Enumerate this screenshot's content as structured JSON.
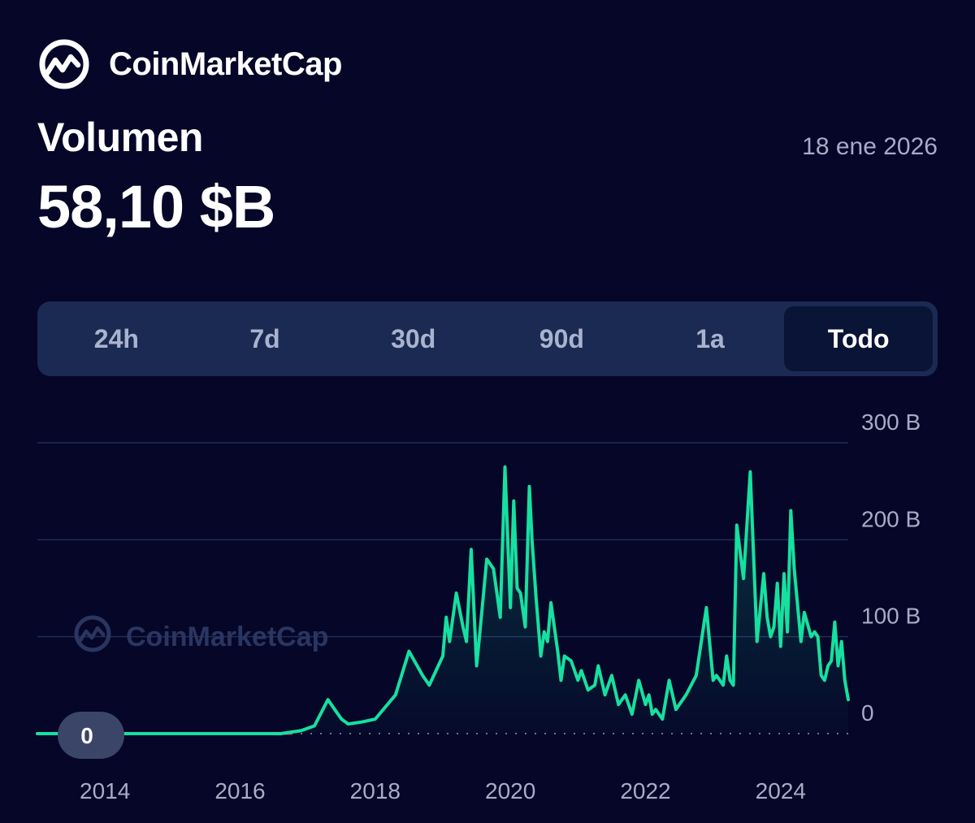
{
  "brand": {
    "name": "CoinMarketCap"
  },
  "header": {
    "metric_label": "Volumen",
    "metric_value": "58,10 $B",
    "date": "18 ene 2026"
  },
  "tabs": [
    {
      "label": "24h",
      "active": false
    },
    {
      "label": "7d",
      "active": false
    },
    {
      "label": "30d",
      "active": false
    },
    {
      "label": "90d",
      "active": false
    },
    {
      "label": "1a",
      "active": false
    },
    {
      "label": "Todo",
      "active": true
    }
  ],
  "colors": {
    "background": "#050628",
    "line": "#16E0A0",
    "grid": "#1F2E55",
    "zero_line": "#C0394A",
    "axis_text": "#A7ACC6"
  },
  "chart_data": {
    "type": "line",
    "ylabel_ticks": [
      "0",
      "100 B",
      "200 B",
      "300 B"
    ],
    "y_ticks": [
      0,
      100,
      200,
      300
    ],
    "x_tick_labels": [
      "2014",
      "2016",
      "2018",
      "2020",
      "2022",
      "2024"
    ],
    "x_ticks": [
      2014,
      2016,
      2018,
      2020,
      2022,
      2024
    ],
    "xlim": [
      2013.0,
      2025.0
    ],
    "ylim": [
      0,
      300
    ],
    "grid": true,
    "watermark": "CoinMarketCap",
    "current_badge": "0",
    "series": [
      {
        "x": [
          2013.0,
          2014.0,
          2015.0,
          2016.0,
          2016.6,
          2016.9,
          2017.1,
          2017.3,
          2017.4,
          2017.5,
          2017.6,
          2017.8,
          2018.0,
          2018.3,
          2018.5,
          2018.7,
          2018.8,
          2018.9,
          2019.0,
          2019.05,
          2019.1,
          2019.2,
          2019.3,
          2019.35,
          2019.42,
          2019.5,
          2019.55,
          2019.65,
          2019.75,
          2019.85,
          2019.92,
          2020.0,
          2020.05,
          2020.1,
          2020.15,
          2020.22,
          2020.28,
          2020.32,
          2020.38,
          2020.45,
          2020.5,
          2020.55,
          2020.6,
          2020.7,
          2020.75,
          2020.8,
          2020.9,
          2021.0,
          2021.05,
          2021.15,
          2021.25,
          2021.3,
          2021.4,
          2021.5,
          2021.6,
          2021.7,
          2021.8,
          2021.9,
          2022.0,
          2022.05,
          2022.1,
          2022.15,
          2022.25,
          2022.35,
          2022.45,
          2022.6,
          2022.75,
          2022.9,
          2023.0,
          2023.05,
          2023.15,
          2023.2,
          2023.25,
          2023.3,
          2023.35,
          2023.45,
          2023.55,
          2023.65,
          2023.75,
          2023.8,
          2023.85,
          2023.9,
          2023.95,
          2024.0,
          2024.05,
          2024.1,
          2024.15,
          2024.2,
          2024.3,
          2024.35,
          2024.45,
          2024.5,
          2024.55,
          2024.6,
          2024.65,
          2024.7,
          2024.75,
          2024.8,
          2024.85,
          2024.9,
          2024.95,
          2025.0
        ],
        "values": [
          0,
          0,
          0,
          0,
          0,
          3,
          8,
          35,
          25,
          15,
          10,
          12,
          15,
          40,
          85,
          60,
          50,
          65,
          80,
          120,
          95,
          145,
          110,
          95,
          190,
          70,
          105,
          180,
          170,
          120,
          275,
          130,
          240,
          150,
          145,
          110,
          255,
          200,
          140,
          80,
          105,
          95,
          135,
          85,
          55,
          80,
          75,
          55,
          65,
          45,
          50,
          70,
          40,
          60,
          30,
          40,
          20,
          55,
          30,
          40,
          20,
          25,
          15,
          55,
          25,
          40,
          60,
          130,
          55,
          60,
          50,
          80,
          55,
          50,
          215,
          160,
          270,
          95,
          165,
          120,
          100,
          110,
          155,
          90,
          165,
          105,
          230,
          170,
          95,
          125,
          100,
          105,
          100,
          60,
          55,
          70,
          75,
          115,
          70,
          95,
          55,
          35
        ]
      }
    ]
  }
}
